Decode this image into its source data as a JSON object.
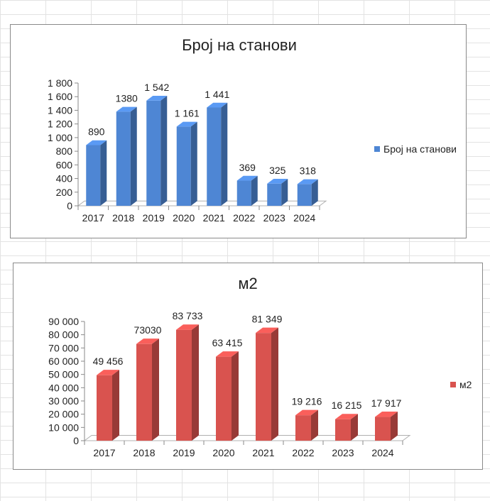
{
  "chart_data": [
    {
      "type": "bar",
      "title": "Број на станови",
      "categories": [
        "2017",
        "2018",
        "2019",
        "2020",
        "2021",
        "2022",
        "2023",
        "2024"
      ],
      "series": [
        {
          "name": "Број на станови",
          "values": [
            890,
            1380,
            1542,
            1161,
            1441,
            369,
            325,
            318
          ]
        }
      ],
      "data_labels": [
        "890",
        "1380",
        "1 542",
        "1 161",
        "1 441",
        "369",
        "325",
        "318"
      ],
      "y_ticks": [
        "0",
        "200",
        "400",
        "600",
        "800",
        "1 000",
        "1 200",
        "1 400",
        "1 600",
        "1 800"
      ],
      "ylim": [
        0,
        1800
      ],
      "grid": false,
      "legend_position": "right",
      "color": "#4e86d4"
    },
    {
      "type": "bar",
      "title": "м2",
      "categories": [
        "2017",
        "2018",
        "2019",
        "2020",
        "2021",
        "2022",
        "2023",
        "2024"
      ],
      "series": [
        {
          "name": "м2",
          "values": [
            49456,
            73030,
            83733,
            63415,
            81349,
            19216,
            16215,
            17917
          ]
        }
      ],
      "data_labels": [
        "49 456",
        "73030",
        "83 733",
        "63 415",
        "81 349",
        "19 216",
        "16 215",
        "17 917"
      ],
      "y_ticks": [
        "0",
        "10 000",
        "20 000",
        "30 000",
        "40 000",
        "50 000",
        "60 000",
        "70 000",
        "80 000",
        "90 000"
      ],
      "ylim": [
        0,
        90000
      ],
      "grid": false,
      "legend_position": "right",
      "color": "#d9534f"
    }
  ]
}
